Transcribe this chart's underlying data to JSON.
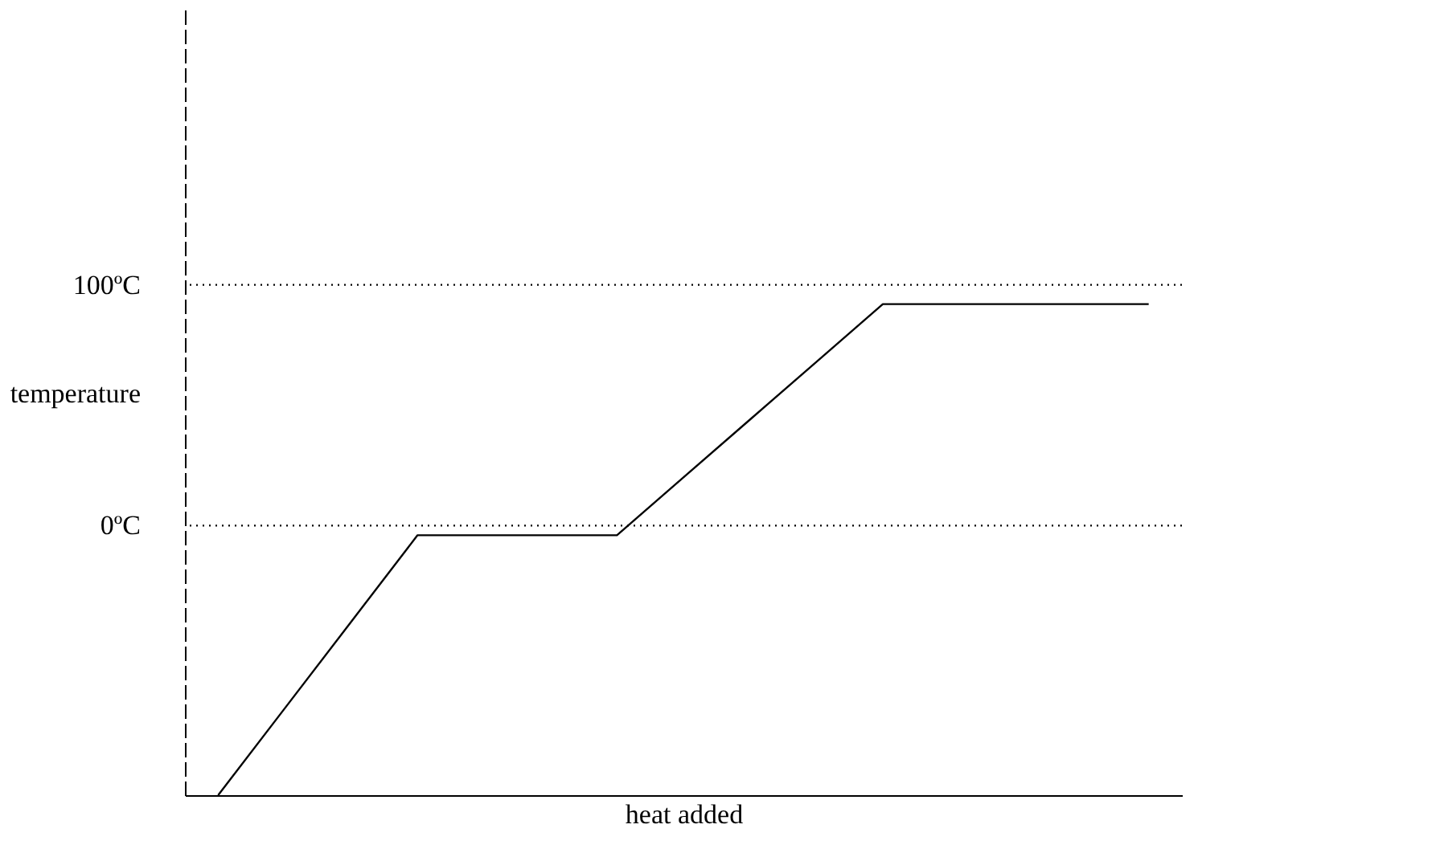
{
  "chart_data": {
    "type": "line",
    "xlabel": "heat added",
    "ylabel": "temperature",
    "categories": [
      null,
      null,
      null,
      null,
      null,
      null,
      null,
      null,
      null,
      null,
      null,
      null,
      null,
      null,
      null
    ],
    "series": [
      {
        "color": "#000000",
        "values": [
          -112,
          -76,
          -40,
          -4,
          -4,
          -4,
          -4,
          20,
          44,
          68,
          92,
          92,
          92,
          92,
          92
        ]
      }
    ],
    "ylim": [
      -112,
      215
    ],
    "yticks": [
      {
        "value": 0,
        "label": "0ºC"
      },
      {
        "value": 100,
        "label": "100ºC"
      }
    ],
    "ref_lines": [
      {
        "axis": "y",
        "value": 0,
        "label": null,
        "line_style": "dotted"
      },
      {
        "axis": "y",
        "value": 100,
        "label": null,
        "line_style": "dotted"
      }
    ],
    "tick_labels": "y",
    "grid": false,
    "marker": "none",
    "line_style": "solid"
  }
}
